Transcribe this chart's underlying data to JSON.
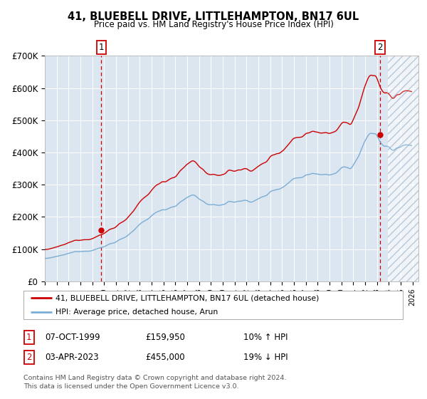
{
  "title": "41, BLUEBELL DRIVE, LITTLEHAMPTON, BN17 6UL",
  "subtitle": "Price paid vs. HM Land Registry's House Price Index (HPI)",
  "background_color": "#dce6f0",
  "plot_bg_color": "#dce6f0",
  "hatch_color": "#b8c8d8",
  "red_line_color": "#cc0000",
  "blue_line_color": "#7aadd4",
  "marker_color": "#cc0000",
  "dashed_line_color": "#cc0000",
  "ylim": [
    0,
    700000
  ],
  "yticks": [
    0,
    100000,
    200000,
    300000,
    400000,
    500000,
    600000,
    700000
  ],
  "ytick_labels": [
    "£0",
    "£100K",
    "£200K",
    "£300K",
    "£400K",
    "£500K",
    "£600K",
    "£700K"
  ],
  "x_start_year": 1995,
  "x_end_year": 2026,
  "sale1_year": 1999.77,
  "sale1_price": 159950,
  "sale2_year": 2023.25,
  "sale2_price": 455000,
  "cutoff_year": 2023.9,
  "legend_line1": "41, BLUEBELL DRIVE, LITTLEHAMPTON, BN17 6UL (detached house)",
  "legend_line2": "HPI: Average price, detached house, Arun",
  "note1_date": "07-OCT-1999",
  "note1_price": "£159,950",
  "note1_hpi": "10% ↑ HPI",
  "note2_date": "03-APR-2023",
  "note2_price": "£455,000",
  "note2_hpi": "19% ↓ HPI",
  "footer": "Contains HM Land Registry data © Crown copyright and database right 2024.\nThis data is licensed under the Open Government Licence v3.0."
}
